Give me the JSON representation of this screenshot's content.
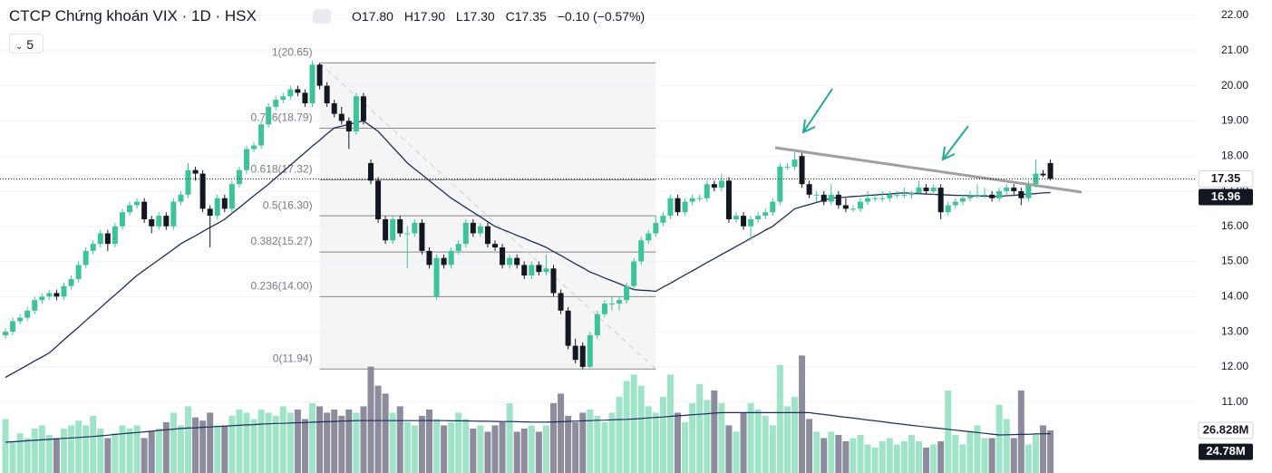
{
  "chart_data": {
    "type": "candlestick",
    "header": {
      "title": "CTCP Chứng khoán VIX · 1D · HSX",
      "interval": "5",
      "ohlc": [
        {
          "key": "O",
          "value": "17.80"
        },
        {
          "key": "H",
          "value": "17.90"
        },
        {
          "key": "L",
          "value": "17.30"
        },
        {
          "key": "C",
          "value": "17.35"
        }
      ],
      "change": "−0.10 (−0.57%)"
    },
    "up_color": "#3cc39a",
    "down_color": "#131722",
    "volume_up_color": "#9fe3c8",
    "volume_down_color": "#8c8c9c",
    "ma_color": "#1e2c5a",
    "ylim": [
      8.98,
      22.44
    ],
    "yticks": [
      {
        "value": 11,
        "label": "11.00"
      },
      {
        "value": 12,
        "label": "12.00"
      },
      {
        "value": 13,
        "label": "13.00"
      },
      {
        "value": 14,
        "label": "14.00"
      },
      {
        "value": 15,
        "label": "15.00"
      },
      {
        "value": 16,
        "label": "16.00"
      },
      {
        "value": 17,
        "label": "17.00"
      },
      {
        "value": 18,
        "label": "18.00"
      },
      {
        "value": 19,
        "label": "19.00"
      },
      {
        "value": 20,
        "label": "20.00"
      },
      {
        "value": 21,
        "label": "21.00"
      },
      {
        "value": 22,
        "label": "22.00"
      }
    ],
    "grid": true,
    "vlim": [
      0,
      74.2
    ],
    "price_marker": 17.35,
    "ma_marker": 16.96,
    "volume_marker": {
      "value": 26.828,
      "label": "26.828M"
    },
    "volume_ma_marker": {
      "value": 24.78,
      "label": "24.78M"
    },
    "fib_levels": [
      {
        "value": 20.65,
        "label": "1(20.65)"
      },
      {
        "value": 18.79,
        "label": "0.786(18.79)"
      },
      {
        "value": 17.32,
        "label": "0.618(17.32)"
      },
      {
        "value": 16.3,
        "label": "0.5(16.30)"
      },
      {
        "value": 15.27,
        "label": "0.382(15.27)"
      },
      {
        "value": 14.0,
        "label": "0.236(14.00)"
      },
      {
        "value": 11.94,
        "label": "0(11.94)"
      }
    ],
    "candles": [
      [
        12.9,
        13.1,
        12.8,
        13.0
      ],
      [
        13.0,
        13.4,
        12.9,
        13.3
      ],
      [
        13.3,
        13.5,
        13.2,
        13.4
      ],
      [
        13.4,
        13.7,
        13.3,
        13.6
      ],
      [
        13.6,
        14.0,
        13.5,
        13.9
      ],
      [
        13.9,
        14.1,
        13.8,
        14.0
      ],
      [
        14.0,
        14.2,
        13.9,
        14.1
      ],
      [
        14.1,
        14.2,
        13.9,
        14.0
      ],
      [
        14.0,
        14.4,
        13.9,
        14.3
      ],
      [
        14.3,
        14.6,
        14.2,
        14.5
      ],
      [
        14.5,
        15.0,
        14.4,
        14.9
      ],
      [
        14.9,
        15.4,
        14.8,
        15.3
      ],
      [
        15.3,
        15.6,
        15.2,
        15.5
      ],
      [
        15.5,
        15.9,
        15.4,
        15.8
      ],
      [
        15.8,
        15.9,
        15.3,
        15.5
      ],
      [
        15.5,
        16.1,
        15.4,
        16.0
      ],
      [
        16.0,
        16.5,
        15.9,
        16.4
      ],
      [
        16.4,
        16.7,
        16.3,
        16.6
      ],
      [
        16.6,
        16.8,
        16.5,
        16.7
      ],
      [
        16.7,
        16.8,
        16.1,
        16.2
      ],
      [
        16.2,
        16.3,
        15.8,
        16.0
      ],
      [
        16.0,
        16.4,
        15.9,
        16.3
      ],
      [
        16.3,
        16.4,
        15.9,
        16.0
      ],
      [
        16.0,
        16.8,
        15.9,
        16.7
      ],
      [
        16.7,
        17.0,
        16.6,
        16.9
      ],
      [
        16.9,
        17.8,
        16.8,
        17.6
      ],
      [
        17.6,
        17.7,
        17.3,
        17.5
      ],
      [
        17.5,
        17.6,
        16.4,
        16.5
      ],
      [
        16.5,
        16.6,
        15.4,
        16.3
      ],
      [
        16.3,
        16.9,
        16.2,
        16.8
      ],
      [
        16.8,
        16.9,
        16.4,
        16.5
      ],
      [
        16.5,
        17.3,
        16.4,
        17.2
      ],
      [
        17.2,
        17.7,
        17.1,
        17.6
      ],
      [
        17.6,
        18.3,
        17.5,
        18.2
      ],
      [
        18.2,
        18.4,
        18.1,
        18.3
      ],
      [
        18.3,
        19.0,
        18.2,
        18.9
      ],
      [
        18.9,
        19.5,
        18.8,
        19.4
      ],
      [
        19.4,
        19.7,
        19.3,
        19.6
      ],
      [
        19.6,
        19.8,
        19.5,
        19.7
      ],
      [
        19.7,
        20.0,
        19.6,
        19.9
      ],
      [
        19.9,
        20.0,
        19.7,
        19.8
      ],
      [
        19.8,
        19.9,
        19.4,
        19.5
      ],
      [
        19.5,
        20.7,
        19.4,
        20.6
      ],
      [
        20.6,
        20.65,
        19.9,
        20.0
      ],
      [
        20.0,
        20.1,
        19.4,
        19.5
      ],
      [
        19.5,
        19.6,
        19.1,
        19.2
      ],
      [
        19.2,
        19.4,
        18.9,
        19.0
      ],
      [
        19.0,
        19.1,
        18.2,
        18.7
      ],
      [
        18.7,
        19.8,
        18.6,
        19.7
      ],
      [
        19.7,
        19.8,
        18.9,
        19.0
      ],
      [
        17.8,
        17.9,
        17.2,
        17.3
      ],
      [
        17.3,
        17.4,
        16.1,
        16.2
      ],
      [
        16.2,
        16.3,
        15.5,
        15.6
      ],
      [
        15.6,
        16.3,
        15.5,
        16.2
      ],
      [
        16.2,
        16.3,
        15.7,
        15.8
      ],
      [
        15.8,
        16.0,
        14.8,
        15.8
      ],
      [
        15.8,
        16.2,
        15.7,
        16.1
      ],
      [
        16.1,
        16.2,
        15.2,
        15.3
      ],
      [
        15.3,
        15.4,
        14.8,
        14.9
      ],
      [
        14.0,
        15.2,
        13.9,
        15.1
      ],
      [
        15.1,
        15.2,
        14.8,
        14.9
      ],
      [
        14.9,
        15.4,
        14.8,
        15.3
      ],
      [
        15.3,
        15.6,
        15.2,
        15.5
      ],
      [
        15.5,
        16.2,
        15.4,
        16.1
      ],
      [
        16.1,
        16.2,
        15.7,
        15.8
      ],
      [
        15.8,
        16.1,
        15.7,
        16.0
      ],
      [
        16.0,
        16.1,
        15.4,
        15.5
      ],
      [
        15.5,
        15.6,
        15.3,
        15.4
      ],
      [
        15.4,
        15.5,
        14.8,
        14.9
      ],
      [
        14.9,
        15.2,
        14.8,
        15.1
      ],
      [
        15.1,
        15.2,
        14.8,
        14.9
      ],
      [
        14.9,
        15.0,
        14.5,
        14.6
      ],
      [
        14.6,
        15.0,
        14.5,
        14.9
      ],
      [
        14.9,
        15.0,
        14.6,
        14.7
      ],
      [
        14.7,
        15.2,
        14.6,
        14.8
      ],
      [
        14.8,
        14.9,
        14.0,
        14.1
      ],
      [
        14.1,
        14.2,
        13.5,
        13.6
      ],
      [
        13.6,
        13.7,
        12.5,
        12.6
      ],
      [
        12.6,
        12.8,
        12.1,
        12.2
      ],
      [
        12.6,
        12.7,
        11.94,
        12.0
      ],
      [
        12.0,
        13.0,
        11.95,
        12.9
      ],
      [
        12.9,
        13.6,
        12.8,
        13.5
      ],
      [
        13.5,
        13.9,
        13.4,
        13.8
      ],
      [
        13.8,
        14.0,
        13.6,
        13.8
      ],
      [
        13.8,
        14.0,
        13.6,
        13.9
      ],
      [
        13.9,
        14.4,
        13.8,
        14.3
      ],
      [
        14.3,
        15.1,
        14.2,
        15.0
      ],
      [
        15.0,
        15.7,
        14.9,
        15.6
      ],
      [
        15.6,
        15.9,
        15.5,
        15.8
      ],
      [
        15.8,
        16.3,
        15.7,
        16.1
      ],
      [
        16.1,
        16.4,
        16.0,
        16.3
      ],
      [
        16.3,
        16.9,
        16.2,
        16.8
      ],
      [
        16.8,
        16.9,
        16.3,
        16.4
      ],
      [
        16.4,
        16.8,
        16.3,
        16.7
      ],
      [
        16.7,
        16.9,
        16.6,
        16.8
      ],
      [
        16.8,
        16.9,
        16.7,
        16.8
      ],
      [
        16.8,
        17.3,
        16.7,
        17.2
      ],
      [
        17.2,
        17.3,
        17.0,
        17.1
      ],
      [
        17.1,
        17.5,
        17.0,
        17.3
      ],
      [
        17.3,
        17.4,
        16.1,
        16.2
      ],
      [
        16.2,
        16.4,
        16.1,
        16.3
      ],
      [
        16.3,
        16.4,
        15.9,
        16.0
      ],
      [
        16.0,
        16.3,
        15.6,
        16.2
      ],
      [
        16.2,
        16.4,
        16.1,
        16.3
      ],
      [
        16.3,
        16.5,
        16.2,
        16.4
      ],
      [
        16.4,
        16.8,
        16.3,
        16.7
      ],
      [
        16.7,
        17.8,
        16.6,
        17.7
      ],
      [
        17.7,
        17.8,
        17.6,
        17.7
      ],
      [
        17.7,
        18.1,
        17.6,
        17.9
      ],
      [
        18.0,
        18.1,
        17.1,
        17.2
      ],
      [
        17.2,
        17.3,
        16.8,
        16.9
      ],
      [
        16.9,
        17.0,
        16.7,
        16.9
      ],
      [
        16.9,
        17.0,
        16.6,
        16.7
      ],
      [
        16.7,
        17.2,
        16.6,
        16.9
      ],
      [
        16.9,
        17.0,
        16.5,
        16.6
      ],
      [
        16.6,
        16.8,
        16.4,
        16.5
      ],
      [
        16.5,
        16.6,
        16.4,
        16.5
      ],
      [
        16.5,
        16.8,
        16.4,
        16.7
      ],
      [
        16.7,
        17.0,
        16.6,
        16.8
      ],
      [
        16.8,
        16.9,
        16.7,
        16.8
      ],
      [
        16.8,
        17.0,
        16.7,
        16.8
      ],
      [
        16.8,
        17.0,
        16.7,
        16.9
      ],
      [
        16.9,
        17.0,
        16.8,
        16.9
      ],
      [
        16.9,
        17.1,
        16.8,
        16.9
      ],
      [
        16.9,
        17.0,
        16.8,
        16.95
      ],
      [
        16.95,
        17.3,
        16.9,
        17.1
      ],
      [
        17.1,
        17.2,
        16.9,
        17.0
      ],
      [
        17.0,
        17.2,
        16.9,
        17.1
      ],
      [
        17.1,
        17.2,
        16.2,
        16.4
      ],
      [
        16.4,
        16.7,
        16.3,
        16.6
      ],
      [
        16.6,
        16.8,
        16.5,
        16.7
      ],
      [
        16.7,
        16.9,
        16.6,
        16.8
      ],
      [
        16.8,
        17.0,
        16.7,
        16.85
      ],
      [
        16.85,
        17.2,
        16.8,
        16.9
      ],
      [
        16.9,
        17.1,
        16.8,
        16.9
      ],
      [
        16.9,
        17.0,
        16.7,
        16.8
      ],
      [
        16.8,
        17.1,
        16.7,
        17.0
      ],
      [
        17.0,
        17.2,
        16.9,
        17.1
      ],
      [
        17.1,
        17.2,
        16.9,
        17.0
      ],
      [
        17.0,
        17.1,
        16.6,
        16.8
      ],
      [
        16.8,
        17.3,
        16.7,
        17.2
      ],
      [
        17.2,
        17.9,
        17.1,
        17.5
      ],
      [
        17.5,
        17.6,
        17.4,
        17.45
      ],
      [
        17.8,
        17.9,
        17.3,
        17.35
      ]
    ],
    "ma": [
      11.7,
      11.82,
      11.93,
      12.05,
      12.17,
      12.28,
      12.4,
      12.58,
      12.77,
      12.95,
      13.13,
      13.32,
      13.5,
      13.68,
      13.87,
      14.05,
      14.23,
      14.42,
      14.6,
      14.75,
      14.9,
      15.05,
      15.2,
      15.35,
      15.5,
      15.62,
      15.73,
      15.85,
      15.97,
      16.08,
      16.2,
      16.37,
      16.53,
      16.7,
      16.87,
      17.03,
      17.2,
      17.38,
      17.56,
      17.74,
      17.92,
      18.1,
      18.28,
      18.45,
      18.63,
      18.8,
      18.85,
      18.9,
      18.95,
      19.0,
      18.85,
      18.7,
      18.48,
      18.25,
      18.03,
      17.8,
      17.63,
      17.47,
      17.3,
      17.13,
      16.97,
      16.8,
      16.67,
      16.53,
      16.4,
      16.27,
      16.13,
      16.0,
      15.91,
      15.83,
      15.74,
      15.66,
      15.57,
      15.49,
      15.4,
      15.28,
      15.17,
      15.05,
      14.93,
      14.82,
      14.7,
      14.62,
      14.53,
      14.45,
      14.37,
      14.28,
      14.2,
      14.18,
      14.17,
      14.15,
      14.27,
      14.38,
      14.5,
      14.62,
      14.73,
      14.85,
      14.97,
      15.08,
      15.2,
      15.31,
      15.43,
      15.54,
      15.66,
      15.77,
      15.89,
      16.0,
      16.17,
      16.33,
      16.5,
      16.56,
      16.62,
      16.68,
      16.74,
      16.8,
      16.82,
      16.83,
      16.85,
      16.86,
      16.88,
      16.89,
      16.91,
      16.92,
      16.94,
      16.95,
      16.94,
      16.93,
      16.92,
      16.91,
      16.9,
      16.89,
      16.88,
      16.88,
      16.87,
      16.86,
      16.86,
      16.85,
      16.85,
      16.87,
      16.88,
      16.9,
      16.92,
      16.93,
      16.95,
      16.96
    ],
    "volume": [
      34,
      20,
      25,
      22,
      28,
      30,
      24,
      22,
      28,
      30,
      33,
      30,
      36,
      28,
      22,
      25,
      30,
      28,
      30,
      22,
      26,
      28,
      32,
      38,
      30,
      42,
      35,
      33,
      38,
      30,
      30,
      36,
      40,
      38,
      34,
      40,
      38,
      36,
      42,
      38,
      40,
      34,
      44,
      42,
      38,
      40,
      36,
      40,
      38,
      42,
      67,
      55,
      50,
      38,
      42,
      32,
      30,
      36,
      40,
      34,
      30,
      32,
      38,
      34,
      28,
      30,
      26,
      30,
      32,
      44,
      26,
      28,
      30,
      26,
      30,
      44,
      50,
      36,
      32,
      38,
      40,
      36,
      32,
      38,
      48,
      58,
      62,
      55,
      42,
      38,
      48,
      62,
      38,
      32,
      44,
      56,
      46,
      52,
      44,
      30,
      26,
      38,
      44,
      40,
      36,
      30,
      68,
      42,
      48,
      74,
      34,
      26,
      22,
      26,
      24,
      20,
      22,
      24,
      18,
      16,
      20,
      22,
      18,
      20,
      24,
      20,
      16,
      18,
      20,
      52,
      24,
      18,
      26,
      30,
      22,
      22,
      43,
      34,
      22,
      52,
      18,
      24,
      30,
      26.828
    ],
    "volume_ma": [
      19.4,
      19.7,
      20.0,
      20.3,
      20.6,
      20.9,
      21.2,
      21.5,
      21.8,
      22.1,
      22.4,
      22.7,
      23.0,
      23.4,
      23.8,
      24.3,
      24.7,
      25.1,
      25.5,
      25.9,
      26.3,
      26.8,
      27.2,
      27.6,
      28.0,
      28.3,
      28.5,
      28.8,
      29.0,
      29.3,
      29.5,
      29.8,
      30.0,
      30.3,
      30.5,
      30.8,
      31.0,
      31.2,
      31.3,
      31.5,
      31.7,
      31.8,
      32.0,
      32.2,
      32.3,
      32.5,
      32.7,
      32.8,
      33.0,
      33.0,
      33.0,
      33.0,
      33.0,
      33.0,
      33.0,
      33.0,
      33.0,
      33.0,
      33.0,
      33.0,
      33.0,
      32.9,
      32.9,
      32.8,
      32.7,
      32.6,
      32.6,
      32.5,
      32.4,
      32.4,
      32.3,
      32.2,
      32.1,
      32.1,
      32.0,
      32.2,
      32.3,
      32.5,
      32.7,
      32.8,
      33.0,
      33.2,
      33.3,
      33.5,
      33.7,
      33.8,
      34.0,
      34.3,
      34.7,
      35.0,
      35.3,
      35.7,
      36.0,
      36.3,
      36.7,
      37.0,
      37.3,
      37.7,
      38.0,
      38.0,
      38.0,
      38.0,
      38.0,
      38.0,
      38.0,
      38.0,
      38.0,
      38.0,
      38.0,
      38.0,
      38.0,
      37.4,
      36.9,
      36.3,
      35.7,
      35.1,
      34.6,
      34.0,
      33.4,
      32.9,
      32.3,
      31.7,
      31.1,
      30.6,
      30.0,
      29.5,
      29.0,
      28.5,
      28.0,
      27.5,
      27.0,
      26.5,
      26.0,
      25.5,
      25.0,
      24.5,
      24.0,
      24.1,
      24.2,
      24.3,
      24.4,
      24.6,
      24.7,
      24.78
    ]
  }
}
